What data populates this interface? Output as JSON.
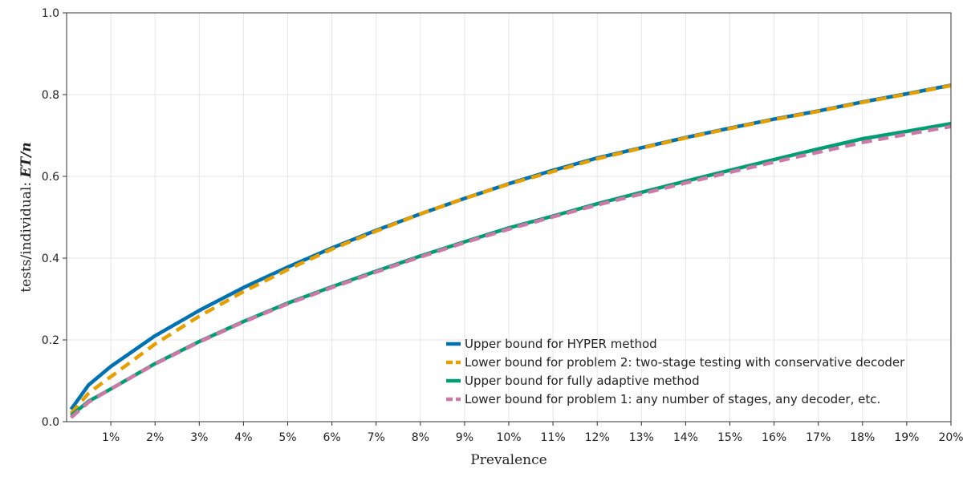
{
  "chart_data": {
    "type": "line",
    "xlabel": "Prevalence",
    "ylabel": "tests/individual: ",
    "ylabel_math": "ET/n",
    "xlim": [
      0,
      0.2
    ],
    "ylim": [
      0,
      1.0
    ],
    "x_ticks": [
      0.01,
      0.02,
      0.03,
      0.04,
      0.05,
      0.06,
      0.07,
      0.08,
      0.09,
      0.1,
      0.11,
      0.12,
      0.13,
      0.14,
      0.15,
      0.16,
      0.17,
      0.18,
      0.19,
      0.2
    ],
    "x_tick_labels": [
      "1%",
      "2%",
      "3%",
      "4%",
      "5%",
      "6%",
      "7%",
      "8%",
      "9%",
      "10%",
      "11%",
      "12%",
      "13%",
      "14%",
      "15%",
      "16%",
      "17%",
      "18%",
      "19%",
      "20%"
    ],
    "y_ticks": [
      0.0,
      0.2,
      0.4,
      0.6,
      0.8,
      1.0
    ],
    "y_tick_labels": [
      "0.0",
      "0.2",
      "0.4",
      "0.6",
      "0.8",
      "1.0"
    ],
    "grid": true,
    "legend_position": "bottom-right",
    "series": [
      {
        "name": "Upper bound for HYPER method",
        "color": "#0072B2",
        "dash": "solid",
        "x": [
          0.001,
          0.005,
          0.01,
          0.02,
          0.03,
          0.04,
          0.05,
          0.06,
          0.07,
          0.08,
          0.09,
          0.1,
          0.11,
          0.12,
          0.13,
          0.14,
          0.15,
          0.16,
          0.17,
          0.18,
          0.19,
          0.2
        ],
        "y": [
          0.03,
          0.09,
          0.135,
          0.21,
          0.272,
          0.328,
          0.378,
          0.425,
          0.468,
          0.508,
          0.546,
          0.582,
          0.615,
          0.645,
          0.67,
          0.695,
          0.718,
          0.74,
          0.76,
          0.782,
          0.802,
          0.823
        ]
      },
      {
        "name": "Lower bound for problem 2: two-stage testing with conservative decoder",
        "color": "#E69F00",
        "dash": "dashed",
        "x": [
          0.001,
          0.005,
          0.01,
          0.02,
          0.03,
          0.04,
          0.05,
          0.06,
          0.07,
          0.08,
          0.09,
          0.1,
          0.11,
          0.12,
          0.13,
          0.14,
          0.15,
          0.16,
          0.17,
          0.18,
          0.19,
          0.2
        ],
        "y": [
          0.02,
          0.07,
          0.11,
          0.19,
          0.258,
          0.318,
          0.372,
          0.422,
          0.466,
          0.508,
          0.546,
          0.581,
          0.612,
          0.643,
          0.669,
          0.694,
          0.717,
          0.739,
          0.759,
          0.781,
          0.801,
          0.822
        ]
      },
      {
        "name": "Upper bound for fully adaptive method",
        "color": "#009E73",
        "dash": "solid",
        "x": [
          0.001,
          0.005,
          0.01,
          0.02,
          0.03,
          0.04,
          0.05,
          0.06,
          0.07,
          0.08,
          0.09,
          0.1,
          0.11,
          0.12,
          0.13,
          0.14,
          0.15,
          0.16,
          0.17,
          0.18,
          0.19,
          0.2
        ],
        "y": [
          0.015,
          0.05,
          0.08,
          0.142,
          0.196,
          0.245,
          0.29,
          0.33,
          0.368,
          0.405,
          0.44,
          0.474,
          0.503,
          0.533,
          0.561,
          0.588,
          0.615,
          0.641,
          0.667,
          0.692,
          0.71,
          0.729
        ]
      },
      {
        "name": "Lower bound for problem 1: any number of stages, any decoder, etc.",
        "color": "#CC79A7",
        "dash": "dashed",
        "x": [
          0.001,
          0.005,
          0.01,
          0.02,
          0.03,
          0.04,
          0.05,
          0.06,
          0.07,
          0.08,
          0.09,
          0.1,
          0.11,
          0.12,
          0.13,
          0.14,
          0.15,
          0.16,
          0.17,
          0.18,
          0.19,
          0.2
        ],
        "y": [
          0.01,
          0.048,
          0.08,
          0.141,
          0.195,
          0.244,
          0.288,
          0.328,
          0.366,
          0.403,
          0.438,
          0.471,
          0.501,
          0.53,
          0.557,
          0.584,
          0.61,
          0.635,
          0.659,
          0.683,
          0.703,
          0.722
        ]
      }
    ]
  }
}
